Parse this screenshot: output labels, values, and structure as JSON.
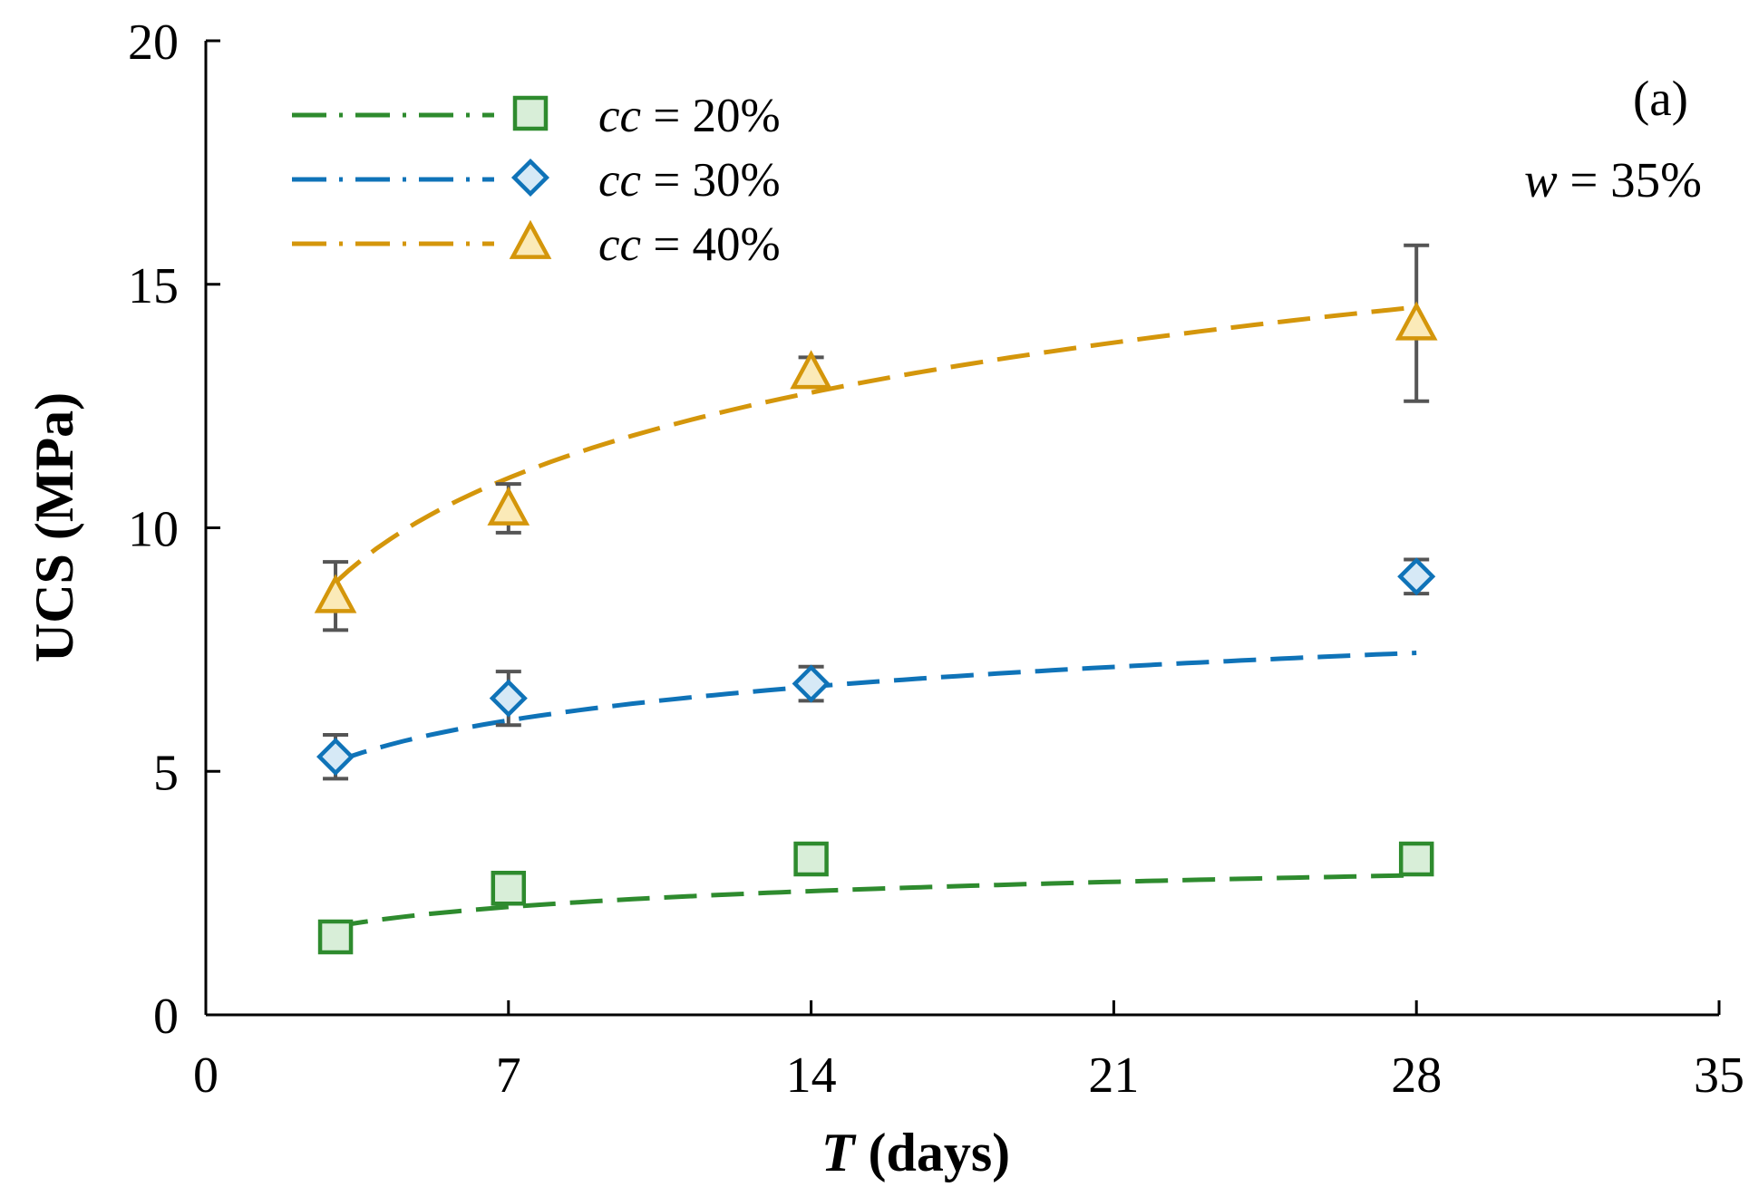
{
  "chart_data": {
    "type": "scatter",
    "title": "",
    "xlabel": {
      "italic": "T",
      "rest": " (days)"
    },
    "ylabel": "UCS (MPa)",
    "xlim": [
      0,
      35
    ],
    "ylim": [
      0,
      20
    ],
    "xticks": [
      0,
      7,
      14,
      21,
      28,
      35
    ],
    "yticks": [
      0,
      5,
      10,
      15,
      20
    ],
    "xtick_labels": [
      "0",
      "7",
      "14",
      "21",
      "28",
      "35"
    ],
    "ytick_labels": [
      "0",
      "5",
      "10",
      "15",
      "20"
    ],
    "grid": false,
    "legend_position": "top-left",
    "annotations": {
      "panel": "(a)",
      "condition": {
        "var": "w",
        "rest": " = 35%"
      }
    },
    "series": [
      {
        "name": "cc = 20%",
        "var": "cc",
        "rest": " = 20%",
        "color": "#2e8b2e",
        "fill": "#d8eed8",
        "marker": "square",
        "x": [
          3,
          7,
          14,
          28
        ],
        "y": [
          1.6,
          2.6,
          3.2,
          3.2
        ],
        "err": [
          0,
          0,
          0,
          0
        ],
        "fit": {
          "a": 0.47,
          "b": 1.3
        }
      },
      {
        "name": "cc = 30%",
        "var": "cc",
        "rest": " = 30%",
        "color": "#0f73b8",
        "fill": "#d6e9f6",
        "marker": "diamond",
        "x": [
          3,
          7,
          14,
          28
        ],
        "y": [
          5.3,
          6.5,
          6.8,
          9.0
        ],
        "err": [
          0.45,
          0.55,
          0.35,
          0.35
        ],
        "fit": {
          "a": 1.0,
          "b": 4.1
        }
      },
      {
        "name": "cc = 40%",
        "var": "cc",
        "rest": " = 40%",
        "color": "#d4960b",
        "fill": "#fbeab8",
        "marker": "triangle",
        "x": [
          3,
          7,
          14,
          28
        ],
        "y": [
          8.6,
          10.4,
          13.2,
          14.2
        ],
        "err": [
          0.7,
          0.5,
          0.3,
          1.6
        ],
        "fit": {
          "a": 2.53,
          "b": 6.1
        }
      }
    ]
  },
  "colors": {
    "axis": "#000000",
    "errorbar": "#555555"
  }
}
